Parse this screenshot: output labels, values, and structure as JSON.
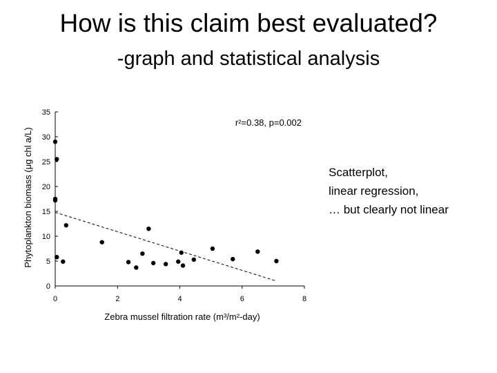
{
  "slide": {
    "title": "How is this claim best evaluated?",
    "subtitle": "-graph and statistical analysis",
    "notes": [
      "Scatterplot,",
      "linear regression,",
      "… but clearly not linear"
    ]
  },
  "chart_data": {
    "type": "scatter",
    "title": "",
    "xlabel": "Zebra mussel filtration rate (m³/m²-day)",
    "ylabel": "Phytoplankton biomass (μg chl a/L)",
    "xlim": [
      0,
      8
    ],
    "ylim": [
      0,
      35
    ],
    "xticks": [
      0,
      2,
      4,
      6,
      8
    ],
    "yticks": [
      0,
      5,
      10,
      15,
      20,
      25,
      30,
      35
    ],
    "annotation": "r²=0.38, p=0.002",
    "grid": false,
    "points": [
      {
        "x": 0.0,
        "y": 29.0
      },
      {
        "x": 0.05,
        "y": 25.5
      },
      {
        "x": 0.0,
        "y": 17.5
      },
      {
        "x": 0.0,
        "y": 17.2
      },
      {
        "x": 0.35,
        "y": 12.2
      },
      {
        "x": 0.05,
        "y": 5.8
      },
      {
        "x": 0.25,
        "y": 4.9
      },
      {
        "x": 1.5,
        "y": 8.8
      },
      {
        "x": 2.35,
        "y": 4.8
      },
      {
        "x": 2.6,
        "y": 3.7
      },
      {
        "x": 2.8,
        "y": 6.5
      },
      {
        "x": 3.0,
        "y": 11.5
      },
      {
        "x": 3.15,
        "y": 4.6
      },
      {
        "x": 3.55,
        "y": 4.4
      },
      {
        "x": 3.95,
        "y": 4.9
      },
      {
        "x": 4.05,
        "y": 6.7
      },
      {
        "x": 4.1,
        "y": 4.1
      },
      {
        "x": 4.45,
        "y": 5.3
      },
      {
        "x": 5.05,
        "y": 7.5
      },
      {
        "x": 5.7,
        "y": 5.4
      },
      {
        "x": 6.5,
        "y": 6.9
      },
      {
        "x": 7.1,
        "y": 5.0
      }
    ],
    "regression_line": {
      "x": [
        0,
        7.1
      ],
      "y": [
        14.8,
        1.0
      ]
    }
  }
}
